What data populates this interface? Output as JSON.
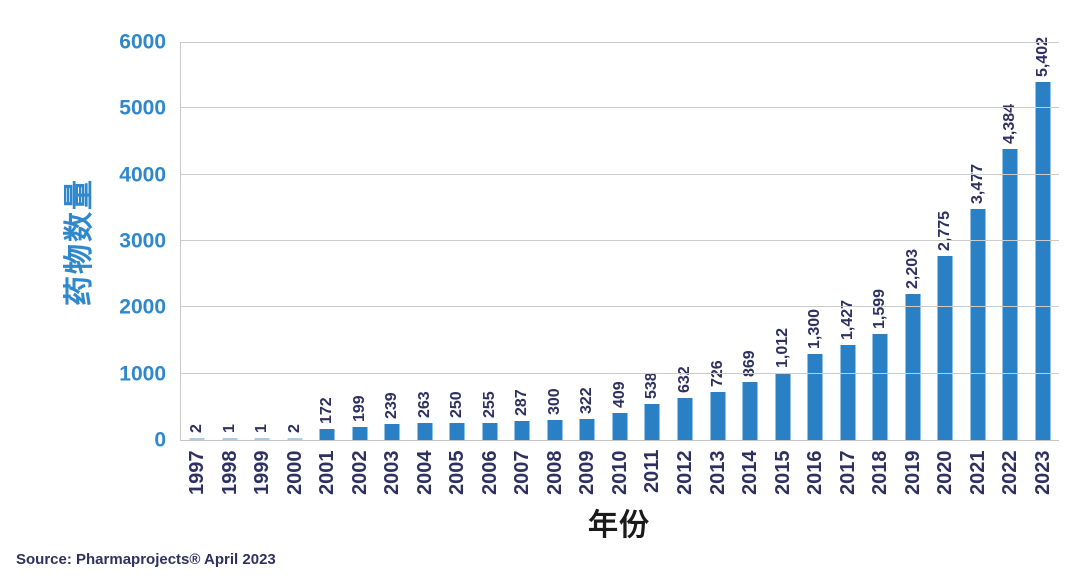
{
  "chart_data": {
    "type": "bar",
    "title": "",
    "categories": [
      "1997",
      "1998",
      "1999",
      "2000",
      "2001",
      "2002",
      "2003",
      "2004",
      "2005",
      "2006",
      "2007",
      "2008",
      "2009",
      "2010",
      "2011",
      "2012",
      "2013",
      "2014",
      "2015",
      "2016",
      "2017",
      "2018",
      "2019",
      "2020",
      "2021",
      "2022",
      "2023"
    ],
    "values": [
      2,
      1,
      1,
      2,
      172,
      199,
      239,
      263,
      250,
      255,
      287,
      300,
      322,
      409,
      538,
      632,
      726,
      869,
      1012,
      1300,
      1427,
      1599,
      2203,
      2775,
      3477,
      4384,
      5402
    ],
    "value_labels": [
      "2",
      "1",
      "1",
      "2",
      "172",
      "199",
      "239",
      "263",
      "250",
      "255",
      "287",
      "300",
      "322",
      "409",
      "538",
      "632",
      "726",
      "869",
      "1,012",
      "1,300",
      "1,427",
      "1,599",
      "2,203",
      "2,775",
      "3,477",
      "4,384",
      "5,402"
    ],
    "xlabel": "年份",
    "ylabel": "药物数量",
    "ylim": [
      0,
      6000
    ],
    "yticks": [
      0,
      1000,
      2000,
      3000,
      4000,
      5000,
      6000
    ],
    "grid": true,
    "legend": "none",
    "colors": {
      "bar": "#2a80c4",
      "bar-tiny": "#a9cde9",
      "axis-blue": "#2f87cc",
      "navy": "#2e3160",
      "grid": "#cccccc",
      "xlabel": "#1a1a1a"
    }
  },
  "footer": {
    "source": "Source: Pharmaprojects® April 2023"
  }
}
